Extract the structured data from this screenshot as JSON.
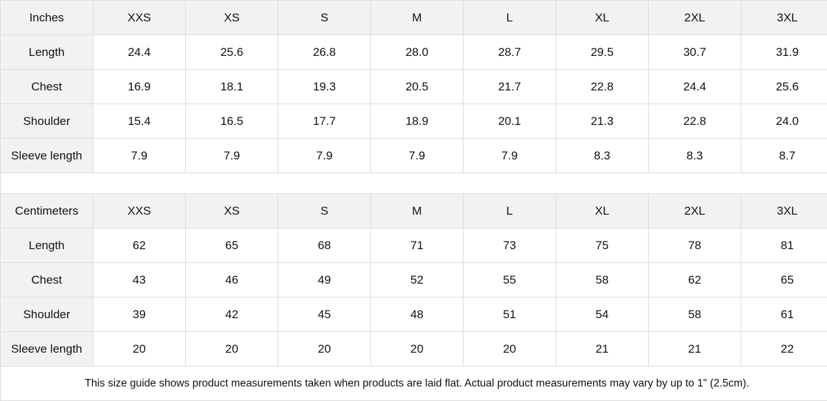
{
  "sizes": [
    "XXS",
    "XS",
    "S",
    "M",
    "L",
    "XL",
    "2XL",
    "3XL"
  ],
  "inches": {
    "unit_label": "Inches",
    "rows": [
      {
        "label": "Length",
        "values": [
          "24.4",
          "25.6",
          "26.8",
          "28.0",
          "28.7",
          "29.5",
          "30.7",
          "31.9"
        ]
      },
      {
        "label": "Chest",
        "values": [
          "16.9",
          "18.1",
          "19.3",
          "20.5",
          "21.7",
          "22.8",
          "24.4",
          "25.6"
        ]
      },
      {
        "label": "Shoulder",
        "values": [
          "15.4",
          "16.5",
          "17.7",
          "18.9",
          "20.1",
          "21.3",
          "22.8",
          "24.0"
        ]
      },
      {
        "label": "Sleeve length",
        "values": [
          "7.9",
          "7.9",
          "7.9",
          "7.9",
          "7.9",
          "8.3",
          "8.3",
          "8.7"
        ]
      }
    ]
  },
  "centimeters": {
    "unit_label": "Centimeters",
    "rows": [
      {
        "label": "Length",
        "values": [
          "62",
          "65",
          "68",
          "71",
          "73",
          "75",
          "78",
          "81"
        ]
      },
      {
        "label": "Chest",
        "values": [
          "43",
          "46",
          "49",
          "52",
          "55",
          "58",
          "62",
          "65"
        ]
      },
      {
        "label": "Shoulder",
        "values": [
          "39",
          "42",
          "45",
          "48",
          "51",
          "54",
          "58",
          "61"
        ]
      },
      {
        "label": "Sleeve length",
        "values": [
          "20",
          "20",
          "20",
          "20",
          "20",
          "21",
          "21",
          "22"
        ]
      }
    ]
  },
  "footnote": "This size guide shows product measurements taken when products are laid flat.  Actual product measurements may vary by up to 1\" (2.5cm)."
}
